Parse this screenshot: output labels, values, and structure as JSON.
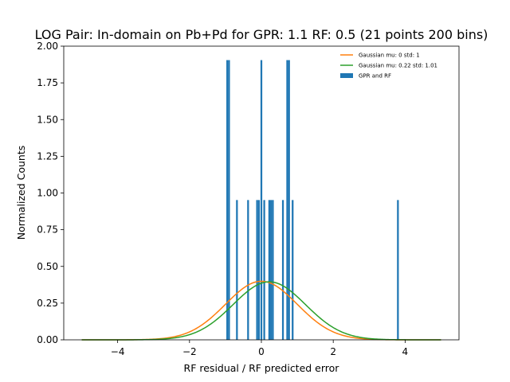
{
  "chart_data": {
    "type": "bar",
    "title": "LOG Pair: In-domain on Pb+Pd for GPR: 1.1 RF: 0.5 (21 points 200 bins)",
    "xlabel": "RF residual / RF predicted error",
    "ylabel": "Normalized Counts",
    "xlim": [
      -5.5,
      5.5
    ],
    "ylim": [
      0,
      2.0
    ],
    "xticks": [
      -4,
      -2,
      0,
      2,
      4
    ],
    "xtick_labels": [
      "−4",
      "−2",
      "0",
      "2",
      "4"
    ],
    "yticks": [
      0,
      0.25,
      0.5,
      0.75,
      1.0,
      1.25,
      1.5,
      1.75,
      2.0
    ],
    "ytick_labels": [
      "0.00",
      "0.25",
      "0.50",
      "0.75",
      "1.00",
      "1.25",
      "1.50",
      "1.75",
      "2.00"
    ],
    "grid": false,
    "legend_position": "upper-right",
    "bin_width": 0.05,
    "series": [
      {
        "name": "Gaussian mu: 0 std: 1",
        "kind": "line",
        "color": "#ff7f0e",
        "mu": 0,
        "std": 1,
        "x_range": [
          -5,
          5
        ]
      },
      {
        "name": "Gaussian mu: 0.22 std: 1.01",
        "kind": "line",
        "color": "#2ca02c",
        "mu": 0.22,
        "std": 1.01,
        "x_range": [
          -5,
          5
        ]
      },
      {
        "name": "GPR and RF",
        "kind": "histogram",
        "color": "#1f77b4",
        "bins": [
          {
            "x": -0.95,
            "value": 1.905
          },
          {
            "x": -0.9,
            "value": 1.905
          },
          {
            "x": -0.68,
            "value": 0.952
          },
          {
            "x": -0.37,
            "value": 0.952
          },
          {
            "x": -0.12,
            "value": 0.952
          },
          {
            "x": -0.07,
            "value": 0.952
          },
          {
            "x": 0.0,
            "value": 1.905
          },
          {
            "x": 0.08,
            "value": 0.952
          },
          {
            "x": 0.22,
            "value": 0.952
          },
          {
            "x": 0.27,
            "value": 0.952
          },
          {
            "x": 0.32,
            "value": 0.952
          },
          {
            "x": 0.6,
            "value": 0.952
          },
          {
            "x": 0.72,
            "value": 1.905
          },
          {
            "x": 0.77,
            "value": 1.905
          },
          {
            "x": 0.87,
            "value": 0.952
          },
          {
            "x": 3.8,
            "value": 0.952
          }
        ]
      }
    ]
  }
}
